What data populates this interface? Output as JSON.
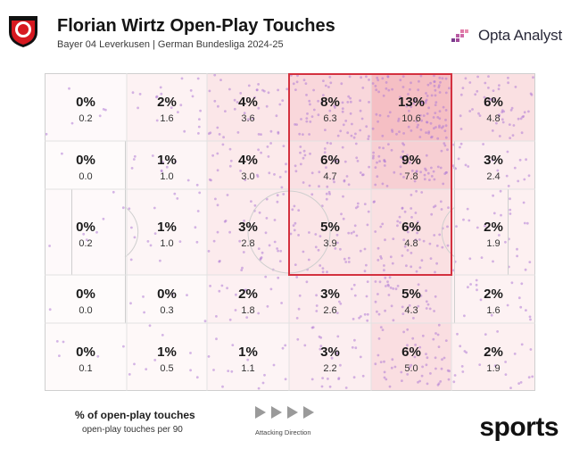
{
  "header": {
    "title": "Florian Wirtz Open-Play Touches",
    "subtitle": "Bayer 04 Leverkusen | German Bundesliga 2024-25",
    "brand": "Opta Analyst"
  },
  "legend": {
    "primary": "% of open-play touches",
    "secondary": "open-play touches per 90",
    "direction": "Attacking Direction"
  },
  "watermark": "sports",
  "colors": {
    "heat": "#e8707c",
    "dots": "#b07bd6",
    "highlight": "#d4313f",
    "lines": "#cfcfcf"
  },
  "chart_data": {
    "type": "heatmap",
    "title": "Florian Wirtz Open-Play Touches",
    "subtitle": "Bayer 04 Leverkusen | German Bundesliga 2024-25",
    "rows": 5,
    "columns": 6,
    "orientation": "attacking left to right",
    "highlighted_zone": {
      "rows": [
        0,
        2
      ],
      "columns": [
        3,
        4
      ]
    },
    "cells": [
      [
        {
          "pct": "0%",
          "per90": "0.2"
        },
        {
          "pct": "2%",
          "per90": "1.6"
        },
        {
          "pct": "4%",
          "per90": "3.6"
        },
        {
          "pct": "8%",
          "per90": "6.3"
        },
        {
          "pct": "13%",
          "per90": "10.6"
        },
        {
          "pct": "6%",
          "per90": "4.8"
        }
      ],
      [
        {
          "pct": "0%",
          "per90": "0.0"
        },
        {
          "pct": "1%",
          "per90": "1.0"
        },
        {
          "pct": "4%",
          "per90": "3.0"
        },
        {
          "pct": "6%",
          "per90": "4.7"
        },
        {
          "pct": "9%",
          "per90": "7.8"
        },
        {
          "pct": "3%",
          "per90": "2.4"
        }
      ],
      [
        {
          "pct": "0%",
          "per90": "0.2"
        },
        {
          "pct": "1%",
          "per90": "1.0"
        },
        {
          "pct": "3%",
          "per90": "2.8"
        },
        {
          "pct": "5%",
          "per90": "3.9"
        },
        {
          "pct": "6%",
          "per90": "4.8"
        },
        {
          "pct": "2%",
          "per90": "1.9"
        }
      ],
      [
        {
          "pct": "0%",
          "per90": "0.0"
        },
        {
          "pct": "0%",
          "per90": "0.3"
        },
        {
          "pct": "2%",
          "per90": "1.8"
        },
        {
          "pct": "3%",
          "per90": "2.6"
        },
        {
          "pct": "5%",
          "per90": "4.3"
        },
        {
          "pct": "2%",
          "per90": "1.6"
        }
      ],
      [
        {
          "pct": "0%",
          "per90": "0.1"
        },
        {
          "pct": "1%",
          "per90": "0.5"
        },
        {
          "pct": "1%",
          "per90": "1.1"
        },
        {
          "pct": "3%",
          "per90": "2.2"
        },
        {
          "pct": "6%",
          "per90": "5.0"
        },
        {
          "pct": "2%",
          "per90": "1.9"
        }
      ]
    ]
  }
}
